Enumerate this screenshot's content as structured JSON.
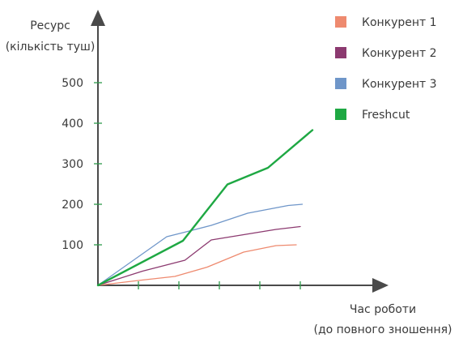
{
  "chart_data": {
    "type": "line",
    "ylabel_line1": "Ресурс",
    "ylabel_line2": "(кількість туш)",
    "xlabel_line1": "Час роботи",
    "xlabel_line2": "(до повного зношення)",
    "x": [
      0,
      1,
      2,
      3,
      4,
      5
    ],
    "xlim": [
      0,
      6.8
    ],
    "ylim": [
      0,
      500
    ],
    "yticks": [
      100,
      200,
      300,
      400,
      500
    ],
    "ytick_labels": [
      "100",
      "200",
      "300",
      "400",
      "500"
    ],
    "xticks": [
      1,
      2,
      3,
      4,
      5
    ],
    "grid": false,
    "legend_position": "top-right",
    "series": [
      {
        "name": "Конкурент 1",
        "color": "#ee8a6f",
        "points": [
          [
            0,
            0
          ],
          [
            1,
            12
          ],
          [
            1.9,
            22
          ],
          [
            2.7,
            45
          ],
          [
            3.6,
            82
          ],
          [
            4.4,
            98
          ],
          [
            4.9,
            100
          ]
        ]
      },
      {
        "name": "Конкурент 2",
        "color": "#8c3a70",
        "points": [
          [
            0,
            0
          ],
          [
            1.1,
            35
          ],
          [
            2.15,
            62
          ],
          [
            2.8,
            112
          ],
          [
            3.6,
            125
          ],
          [
            4.4,
            138
          ],
          [
            5.0,
            145
          ]
        ]
      },
      {
        "name": "Конкурент 3",
        "color": "#6f96c9",
        "points": [
          [
            0,
            0
          ],
          [
            1.7,
            120
          ],
          [
            2.1,
            130
          ],
          [
            2.8,
            148
          ],
          [
            3.7,
            178
          ],
          [
            4.7,
            197
          ],
          [
            5.05,
            200
          ]
        ]
      },
      {
        "name": "Freshcut",
        "color": "#1ea843",
        "points": [
          [
            0,
            0
          ],
          [
            2.1,
            110
          ],
          [
            3.2,
            249
          ],
          [
            4.2,
            290
          ],
          [
            5.3,
            383
          ]
        ]
      }
    ]
  }
}
